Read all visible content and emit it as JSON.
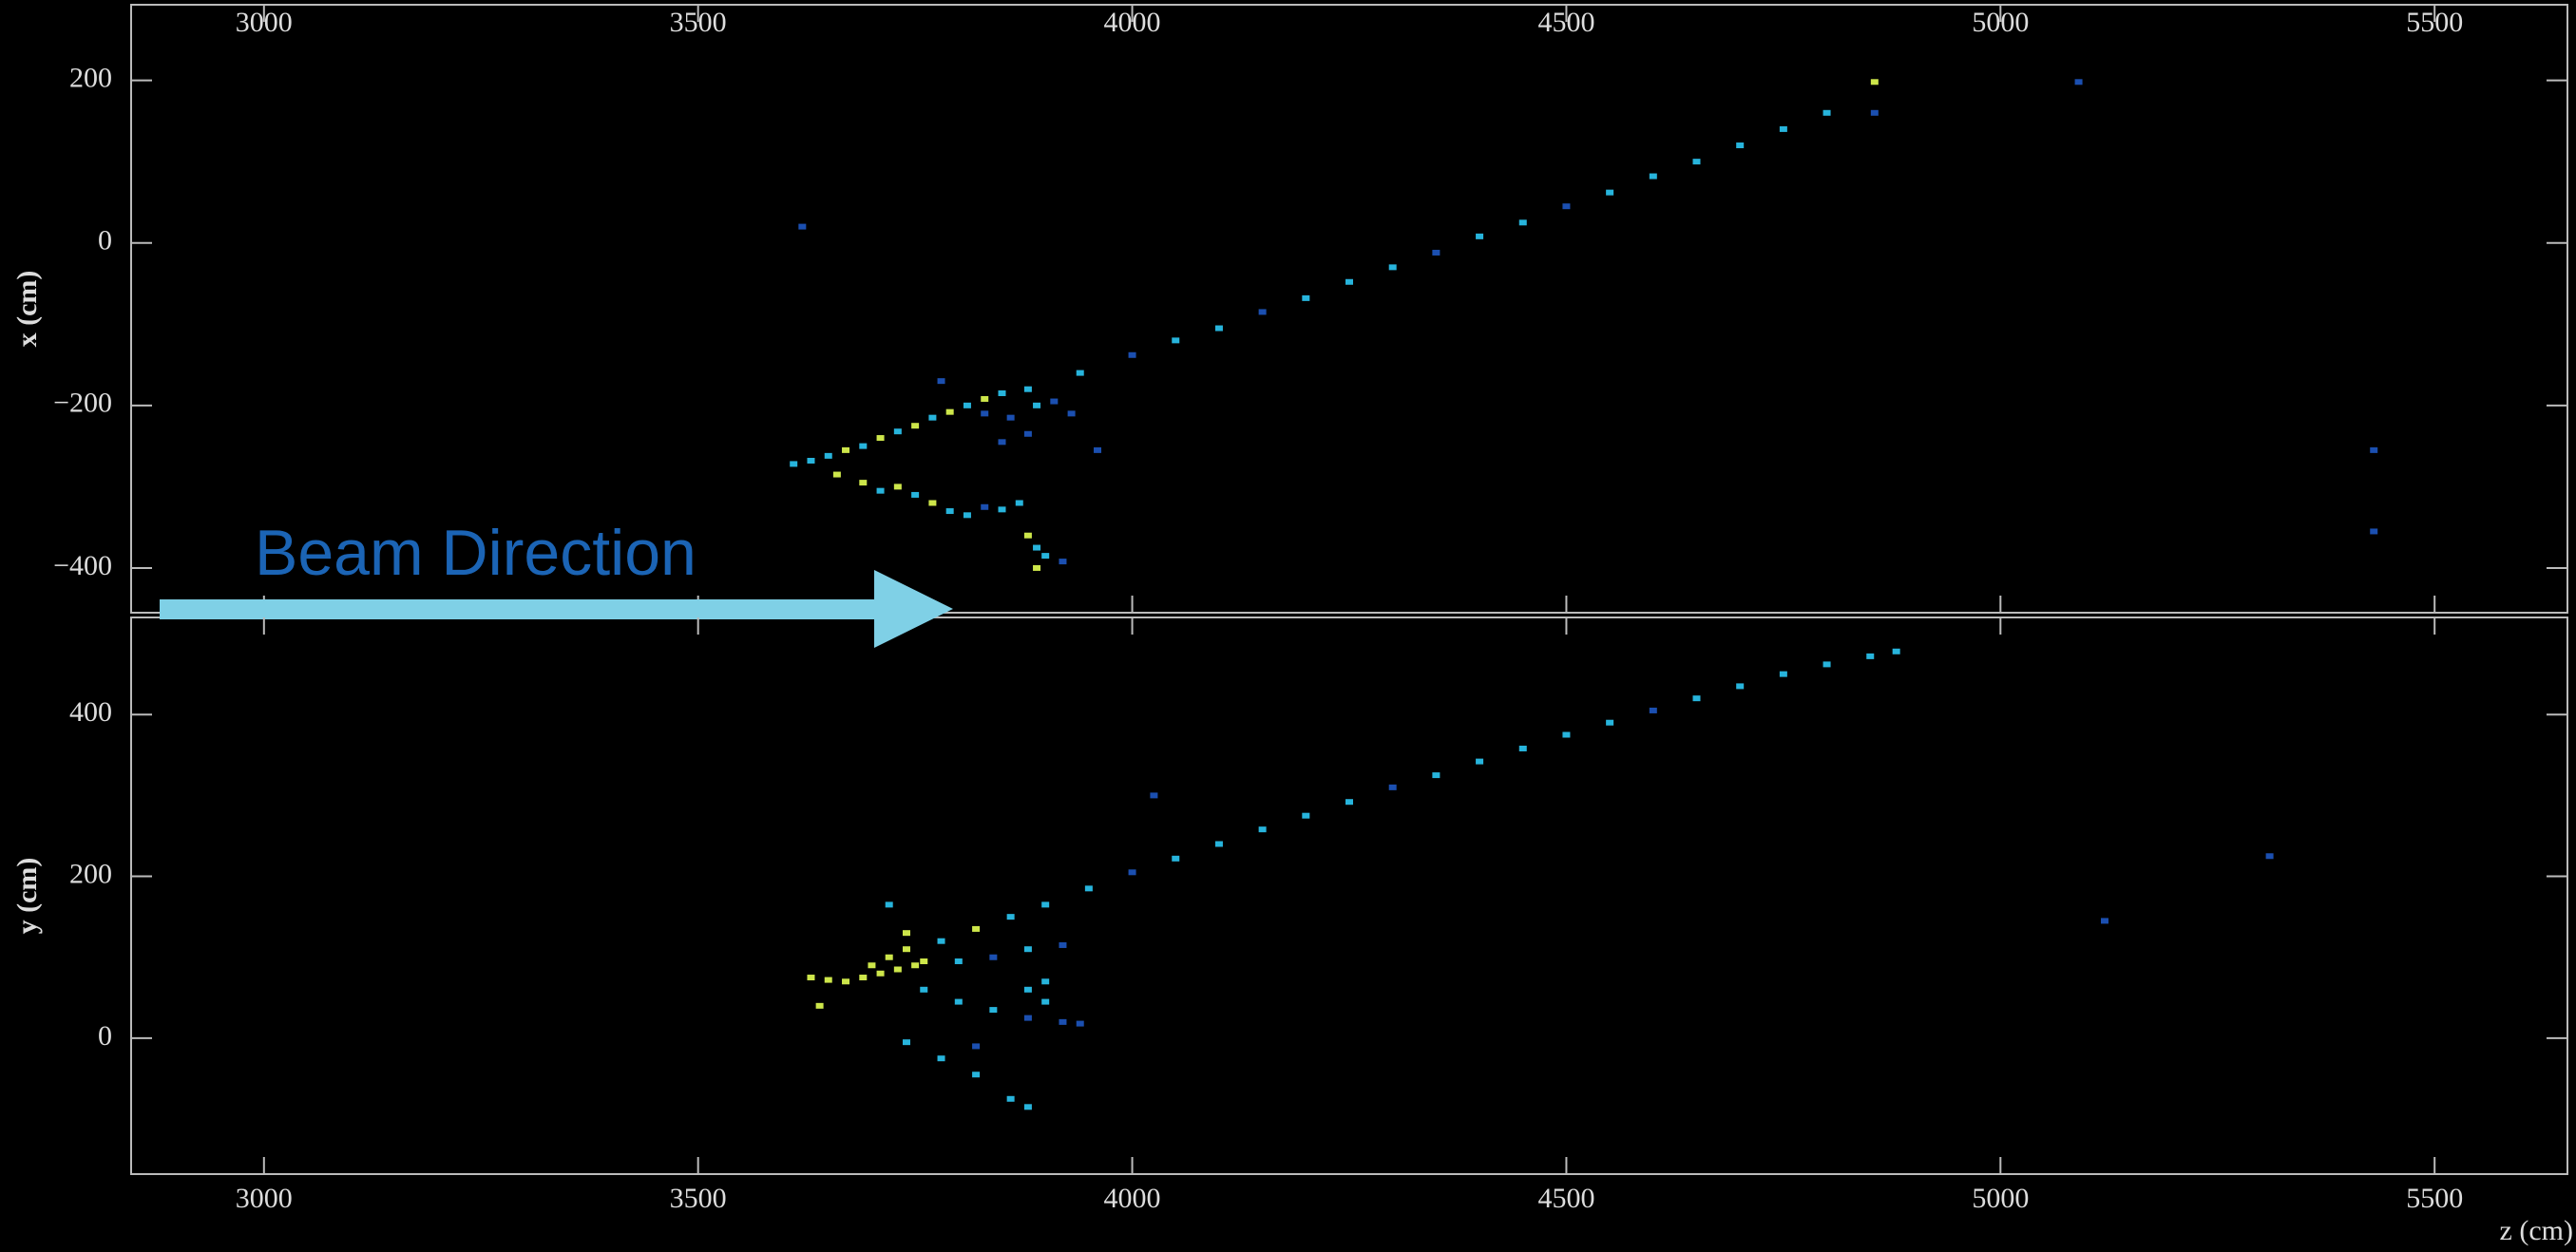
{
  "chart_data": [
    {
      "type": "scatter",
      "ylabel": "x (cm)",
      "annotation": "Beam Direction",
      "xlim": [
        2847,
        5653
      ],
      "ylim": [
        -455,
        293
      ],
      "xticks": [
        3000,
        3500,
        4000,
        4500,
        5000,
        5500
      ],
      "yticks": [
        {
          "value": -400,
          "label": "−400"
        },
        {
          "value": -200,
          "label": "−200"
        },
        0,
        200
      ],
      "series": [
        {
          "color": "#1b4fb0",
          "x": [
            3620,
            3960,
            5090,
            5430,
            5430,
            3780,
            4855,
            3850,
            3880,
            3930,
            3860,
            3910,
            3830,
            4000,
            4150,
            4350,
            4500,
            3920,
            3830
          ],
          "y": [
            20,
            -255,
            198,
            -255,
            -355,
            -170,
            160,
            -245,
            -235,
            -210,
            -215,
            -195,
            -210,
            -138,
            -85,
            -12,
            45,
            -392,
            -325
          ]
        },
        {
          "color": "#27b4dc",
          "x": [
            3610,
            3630,
            3650,
            3690,
            3730,
            3770,
            3810,
            3850,
            3880,
            3940,
            4050,
            4100,
            4200,
            4250,
            4300,
            4400,
            4450,
            4550,
            4600,
            4650,
            4700,
            4750,
            4800,
            3710,
            3750,
            3790,
            3810,
            3850,
            3870,
            3890,
            3900,
            3890
          ],
          "y": [
            -272,
            -268,
            -262,
            -250,
            -232,
            -215,
            -200,
            -185,
            -180,
            -160,
            -120,
            -105,
            -68,
            -48,
            -30,
            8,
            25,
            62,
            82,
            100,
            120,
            140,
            160,
            -305,
            -310,
            -330,
            -335,
            -328,
            -320,
            -200,
            -385,
            -375
          ]
        },
        {
          "color": "#cde64a",
          "x": [
            3670,
            3710,
            3750,
            3790,
            3830,
            3660,
            3690,
            3730,
            3770,
            4855,
            3880,
            3890
          ],
          "y": [
            -255,
            -240,
            -225,
            -208,
            -192,
            -285,
            -295,
            -300,
            -320,
            198,
            -360,
            -400
          ]
        }
      ]
    },
    {
      "type": "scatter",
      "ylabel": "y (cm)",
      "xlabel": "z (cm)",
      "xlim": [
        2847,
        5653
      ],
      "ylim": [
        -168,
        520
      ],
      "xticks": [
        3000,
        3500,
        4000,
        4500,
        5000,
        5500
      ],
      "yticks": [
        0,
        200,
        400
      ],
      "series": [
        {
          "color": "#1b4fb0",
          "x": [
            4025,
            5120,
            5310,
            3820,
            3920,
            3940,
            3880,
            3920,
            3840,
            4000,
            4300,
            4600
          ],
          "y": [
            300,
            145,
            225,
            -10,
            20,
            18,
            25,
            115,
            100,
            205,
            310,
            405
          ]
        },
        {
          "color": "#27b4dc",
          "x": [
            3780,
            3860,
            3900,
            3950,
            4050,
            4100,
            4150,
            4200,
            4250,
            4350,
            4400,
            4450,
            4500,
            4550,
            4650,
            4700,
            4750,
            4800,
            4850,
            4880,
            3760,
            3800,
            3840,
            3880,
            3900,
            3900,
            3740,
            3780,
            3820,
            3860,
            3880,
            3720,
            3800,
            3880
          ],
          "y": [
            120,
            150,
            165,
            185,
            222,
            240,
            258,
            275,
            292,
            325,
            342,
            358,
            375,
            390,
            420,
            435,
            450,
            462,
            472,
            478,
            60,
            45,
            35,
            60,
            45,
            70,
            -5,
            -25,
            -45,
            -75,
            -85,
            165,
            95,
            110
          ]
        },
        {
          "color": "#cde64a",
          "x": [
            3630,
            3650,
            3670,
            3690,
            3710,
            3730,
            3750,
            3700,
            3720,
            3740,
            3740,
            3760,
            3640,
            3820
          ],
          "y": [
            75,
            72,
            70,
            75,
            80,
            85,
            90,
            90,
            100,
            110,
            130,
            95,
            40,
            135
          ]
        }
      ]
    }
  ]
}
